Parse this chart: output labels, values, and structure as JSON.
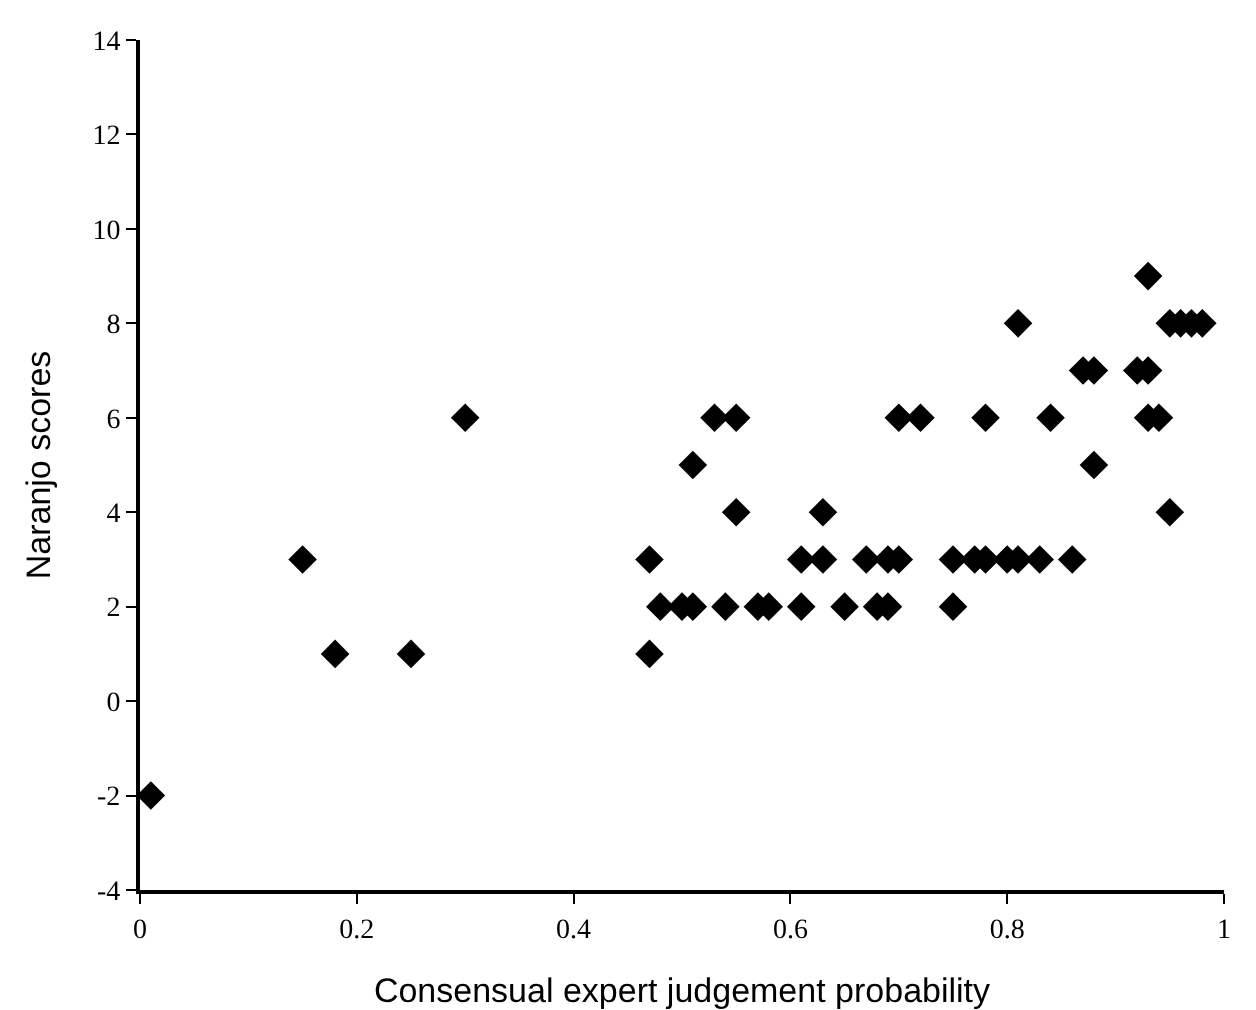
{
  "chart_data": {
    "type": "scatter",
    "xlabel": "Consensual expert judgement probability",
    "ylabel": "Naranjo scores",
    "x": [
      0.01,
      0.15,
      0.18,
      0.25,
      0.3,
      0.47,
      0.47,
      0.48,
      0.5,
      0.51,
      0.51,
      0.53,
      0.55,
      0.54,
      0.55,
      0.57,
      0.58,
      0.61,
      0.61,
      0.63,
      0.63,
      0.65,
      0.67,
      0.68,
      0.69,
      0.69,
      0.7,
      0.7,
      0.72,
      0.75,
      0.75,
      0.77,
      0.78,
      0.78,
      0.8,
      0.81,
      0.81,
      0.83,
      0.84,
      0.86,
      0.87,
      0.88,
      0.88,
      0.92,
      0.93,
      0.93,
      0.93,
      0.94,
      0.95,
      0.95,
      0.96,
      0.97,
      0.98
    ],
    "series": [
      {
        "color": "#000000",
        "values": [
          -2,
          3,
          1,
          1,
          6,
          3,
          1,
          2,
          2,
          2,
          5,
          6,
          6,
          2,
          4,
          2,
          2,
          2,
          3,
          3,
          4,
          2,
          3,
          2,
          2,
          3,
          3,
          6,
          6,
          2,
          3,
          3,
          3,
          6,
          3,
          3,
          8,
          3,
          6,
          3,
          7,
          7,
          5,
          7,
          7,
          9,
          6,
          6,
          4,
          8,
          8,
          8,
          8
        ]
      }
    ],
    "xlim": [
      0,
      1
    ],
    "xticks": [
      0,
      0.2,
      0.4,
      0.6,
      0.8,
      1
    ],
    "ylim": [
      -4,
      14
    ],
    "yticks": [
      -4,
      -2,
      0,
      2,
      4,
      6,
      8,
      10,
      12,
      14
    ],
    "marker": "diamond",
    "grid": false
  }
}
